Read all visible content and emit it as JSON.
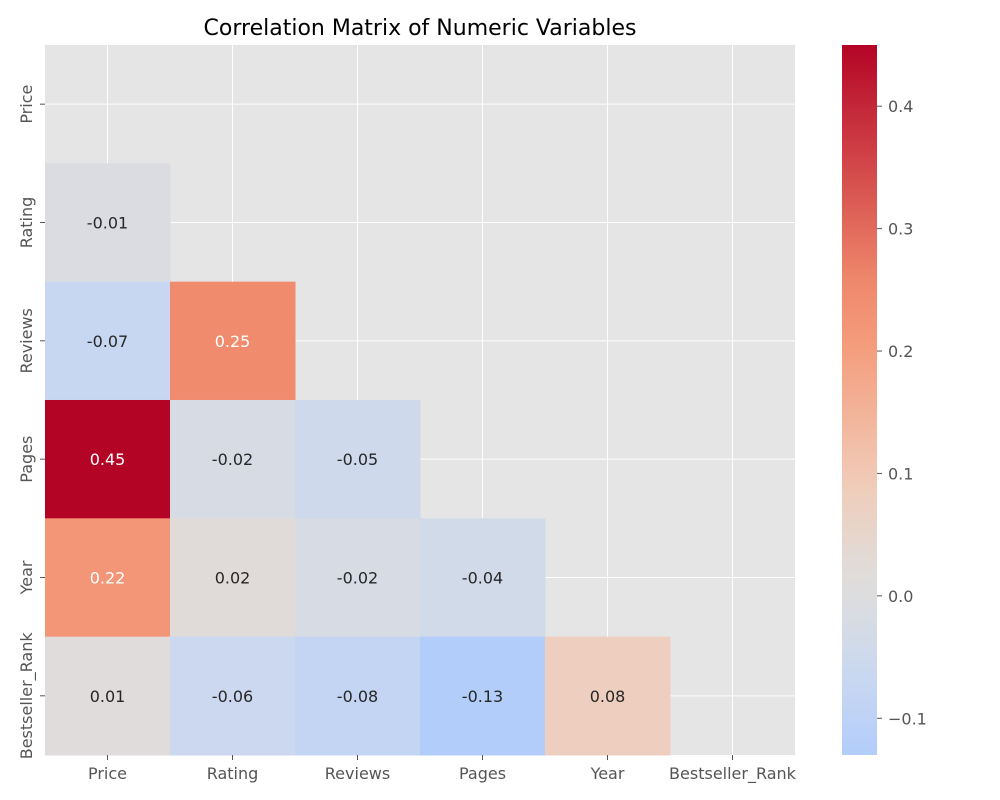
{
  "chart_data": {
    "type": "heatmap",
    "title": "Correlation Matrix of Numeric Variables",
    "xlabel": "",
    "ylabel": "",
    "x_categories": [
      "Price",
      "Rating",
      "Reviews",
      "Pages",
      "Year",
      "Bestseller_Rank"
    ],
    "y_categories": [
      "Price",
      "Rating",
      "Reviews",
      "Pages",
      "Year",
      "Bestseller_Rank"
    ],
    "mask": "upper-triangle-including-diagonal",
    "cells": [
      {
        "row": "Rating",
        "col": "Price",
        "value": -0.01,
        "label": "-0.01"
      },
      {
        "row": "Reviews",
        "col": "Price",
        "value": -0.07,
        "label": "-0.07"
      },
      {
        "row": "Reviews",
        "col": "Rating",
        "value": 0.25,
        "label": "0.25"
      },
      {
        "row": "Pages",
        "col": "Price",
        "value": 0.45,
        "label": "0.45"
      },
      {
        "row": "Pages",
        "col": "Rating",
        "value": -0.02,
        "label": "-0.02"
      },
      {
        "row": "Pages",
        "col": "Reviews",
        "value": -0.05,
        "label": "-0.05"
      },
      {
        "row": "Year",
        "col": "Price",
        "value": 0.22,
        "label": "0.22"
      },
      {
        "row": "Year",
        "col": "Rating",
        "value": 0.02,
        "label": "0.02"
      },
      {
        "row": "Year",
        "col": "Reviews",
        "value": -0.02,
        "label": "-0.02"
      },
      {
        "row": "Year",
        "col": "Pages",
        "value": -0.04,
        "label": "-0.04"
      },
      {
        "row": "Bestseller_Rank",
        "col": "Price",
        "value": 0.01,
        "label": "0.01"
      },
      {
        "row": "Bestseller_Rank",
        "col": "Rating",
        "value": -0.06,
        "label": "-0.06"
      },
      {
        "row": "Bestseller_Rank",
        "col": "Reviews",
        "value": -0.08,
        "label": "-0.08"
      },
      {
        "row": "Bestseller_Rank",
        "col": "Pages",
        "value": -0.13,
        "label": "-0.13"
      },
      {
        "row": "Bestseller_Rank",
        "col": "Year",
        "value": 0.08,
        "label": "0.08"
      }
    ],
    "colormap": "coolwarm",
    "color_center": 0.0,
    "vmin": -0.13,
    "vmax": 0.45,
    "colorbar": {
      "ticks": [
        -0.1,
        0.0,
        0.1,
        0.2,
        0.3,
        0.4
      ],
      "tick_labels": [
        "−0.1",
        "0.0",
        "0.1",
        "0.2",
        "0.3",
        "0.4"
      ]
    },
    "grid": true,
    "background_color": "#e5e5e5",
    "grid_color": "#ffffff"
  }
}
